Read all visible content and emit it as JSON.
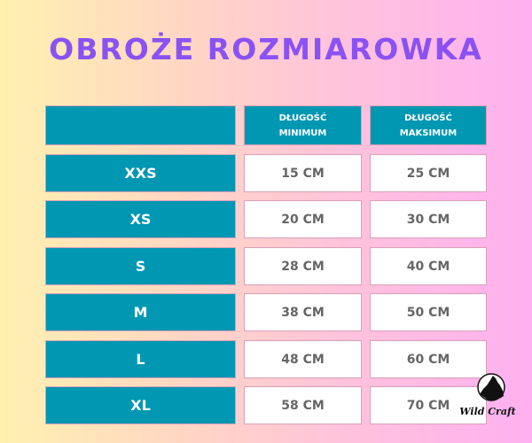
{
  "title": "OBROŻE ROZMIAROWKA",
  "header": {
    "col1": "",
    "col2_line1": "DŁUGOŚĆ",
    "col2_line2": "MINIMUM",
    "col3_line1": "DŁUGOŚĆ",
    "col3_line2": "MAKSIMUM"
  },
  "rows": [
    {
      "size": "XXS",
      "min": "15 CM",
      "max": "25 CM"
    },
    {
      "size": "XS",
      "min": "20 CM",
      "max": "30 CM"
    },
    {
      "size": "S",
      "min": "28 CM",
      "max": "40 CM"
    },
    {
      "size": "M",
      "min": "38 CM",
      "max": "50 CM"
    },
    {
      "size": "L",
      "min": "48 CM",
      "max": "60 CM"
    },
    {
      "size": "XL",
      "min": "58 CM",
      "max": "70 CM"
    }
  ],
  "logo": {
    "text": "Wild Craft",
    "icon": "howling-wolf-icon"
  },
  "colors": {
    "title": "#8a52f5",
    "teal": "#0097b2"
  }
}
